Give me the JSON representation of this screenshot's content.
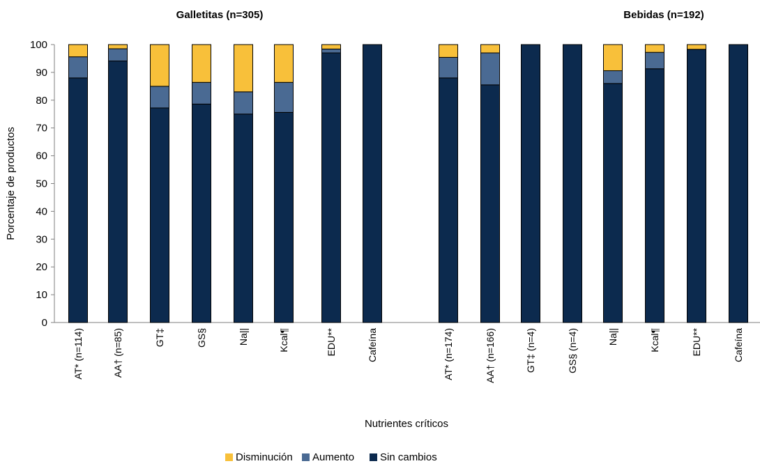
{
  "chart_data": {
    "type": "bar",
    "stacked": true,
    "ylabel": "Porcentaje de productos",
    "xlabel": "Nutrientes críticos",
    "ylim": [
      0,
      100
    ],
    "yticks": [
      0,
      10,
      20,
      30,
      40,
      50,
      60,
      70,
      80,
      90,
      100
    ],
    "grid": false,
    "legend_position": "bottom",
    "groups": [
      {
        "title": "Galletitas (n=305)",
        "categories": [
          "AT* (n=114)",
          "AA† (n=85)",
          "GT‡",
          "GS§",
          "Na||",
          "Kcal¶",
          "EDU**",
          "Cafeína"
        ]
      },
      {
        "title": "Bebidas (n=192)",
        "categories": [
          "AT* (n=174)",
          "AA† (n=166)",
          "GT‡ (n=4)",
          "GS§ (n=4)",
          "Na||",
          "Kcal¶",
          "EDU**",
          "Cafeína"
        ]
      }
    ],
    "series": [
      {
        "name": "Sin cambios",
        "color": "#0c2a4e",
        "values": [
          88,
          94.1,
          77.2,
          78.6,
          75,
          75.6,
          97,
          100,
          88,
          85.5,
          100,
          100,
          86,
          91.3,
          98.3,
          100
        ]
      },
      {
        "name": "Aumento",
        "color": "#4a6a93",
        "values": [
          7.6,
          4.4,
          7.8,
          7.8,
          8,
          10.8,
          1.4,
          0,
          7.4,
          11.5,
          0,
          0,
          4.6,
          5.9,
          0,
          0
        ]
      },
      {
        "name": "Disminución",
        "color": "#f8c03a",
        "values": [
          4.4,
          1.5,
          15,
          13.6,
          17,
          13.6,
          1.6,
          0,
          4.6,
          3,
          0,
          0,
          9.4,
          2.8,
          1.7,
          0
        ]
      }
    ],
    "legend_order": [
      "Disminución",
      "Aumento",
      "Sin cambios"
    ]
  }
}
